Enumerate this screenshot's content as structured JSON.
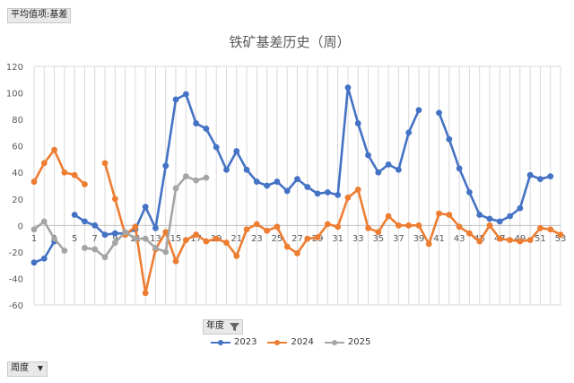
{
  "pivot_field_label": "平均值项:基差",
  "year_filter_label": "年度",
  "week_filter_label": "周度",
  "chart_data": {
    "type": "line",
    "title": "铁矿基差历史（周）",
    "xlabel": "",
    "ylabel": "",
    "ylim": [
      -60,
      120
    ],
    "yticks": [
      -60,
      -40,
      -20,
      0,
      20,
      40,
      60,
      80,
      100,
      120
    ],
    "x": [
      1,
      2,
      3,
      4,
      5,
      6,
      7,
      8,
      9,
      10,
      11,
      12,
      13,
      14,
      15,
      16,
      17,
      18,
      19,
      20,
      21,
      22,
      23,
      24,
      25,
      26,
      27,
      28,
      29,
      30,
      31,
      32,
      33,
      34,
      35,
      36,
      37,
      38,
      39,
      40,
      41,
      42,
      43,
      44,
      45,
      46,
      47,
      48,
      49,
      50,
      51,
      52,
      53
    ],
    "xtick_labels": [
      "1",
      "3",
      "5",
      "7",
      "9",
      "11",
      "13",
      "15",
      "17",
      "19",
      "21",
      "23",
      "25",
      "27",
      "29",
      "31",
      "33",
      "35",
      "37",
      "39",
      "41",
      "43",
      "45",
      "47",
      "49",
      "51",
      "53"
    ],
    "grid": "vertical",
    "legend_position": "bottom",
    "series": [
      {
        "name": "2023",
        "color": "#4472c4",
        "values": [
          -28,
          -25,
          -12,
          null,
          8,
          3,
          0,
          -7,
          -6,
          -6,
          -3,
          14,
          -2,
          45,
          95,
          99,
          77,
          73,
          59,
          42,
          56,
          42,
          33,
          30,
          33,
          26,
          35,
          29,
          24,
          25,
          23,
          104,
          77,
          53,
          40,
          46,
          42,
          70,
          87,
          null,
          85,
          65,
          43,
          25,
          8,
          5,
          3,
          7,
          13,
          38,
          35,
          37,
          null
        ]
      },
      {
        "name": "2024",
        "color": "#ed7d31",
        "values": [
          33,
          47,
          57,
          40,
          38,
          31,
          null,
          47,
          20,
          -7,
          -1,
          -51,
          -18,
          -5,
          -27,
          -11,
          -7,
          -12,
          -10,
          -13,
          -23,
          -3,
          1,
          -4,
          -1,
          -16,
          -21,
          -10,
          -9,
          1,
          -1,
          21,
          27,
          -2,
          -5,
          7,
          0,
          0,
          0,
          -14,
          9,
          8,
          -1,
          -6,
          -12,
          0,
          -10,
          -11,
          -12,
          -11,
          -2,
          -3,
          -7
        ]
      },
      {
        "name": "2025",
        "color": "#a5a5a5",
        "values": [
          -3,
          3,
          -10,
          -19,
          null,
          -17,
          -18,
          -24,
          -13,
          -5,
          -10,
          -10,
          -17,
          -20,
          28,
          37,
          34,
          36,
          null,
          null,
          null,
          null,
          null,
          null,
          null,
          null,
          null,
          null,
          null,
          null,
          null,
          null,
          null,
          null,
          null,
          null,
          null,
          null,
          null,
          null,
          null,
          null,
          null,
          null,
          null,
          null,
          null,
          null,
          null,
          null,
          null,
          null,
          null
        ]
      }
    ]
  }
}
